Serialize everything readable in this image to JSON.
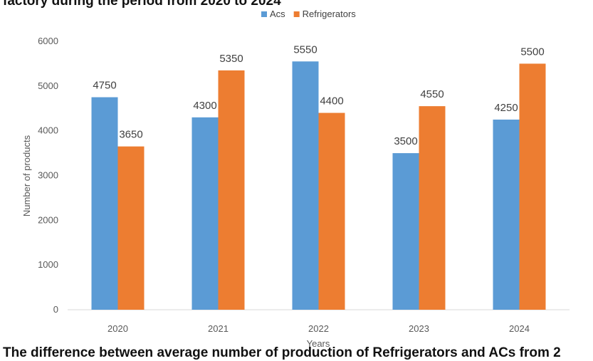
{
  "page": {
    "top_text": "factory during the period from 2020 to 2024",
    "bottom_text": "The difference between average number of production of Refrigerators and ACs from 2"
  },
  "chart_data": {
    "type": "bar",
    "categories": [
      "2020",
      "2021",
      "2022",
      "2023",
      "2024"
    ],
    "series": [
      {
        "name": "Acs",
        "values": [
          4750,
          4300,
          5550,
          3500,
          4250
        ],
        "color": "#5B9BD5"
      },
      {
        "name": "Refrigerators",
        "values": [
          3650,
          5350,
          4400,
          4550,
          5500
        ],
        "color": "#ED7D31"
      }
    ],
    "title": "",
    "xlabel": "Years",
    "ylabel": "Number of products",
    "ylim": [
      0,
      6000
    ],
    "yticks": [
      0,
      1000,
      2000,
      3000,
      4000,
      5000,
      6000
    ],
    "grid": false,
    "legend_position": "top",
    "data_labels": true
  }
}
